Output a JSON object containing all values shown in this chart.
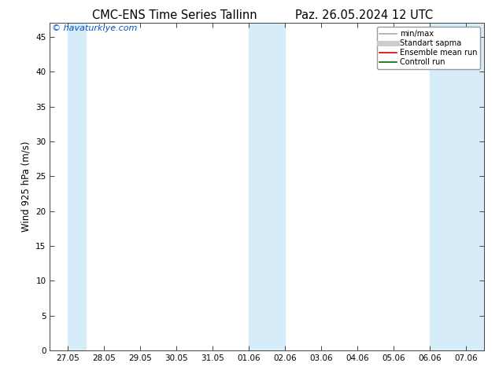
{
  "title_left": "CMC-ENS Time Series Tallinn",
  "title_right": "Paz. 26.05.2024 12 UTC",
  "ylabel": "Wind 925 hPa (m⁄s)",
  "ylabel_text": "Wind 925 hPa (m/s)",
  "watermark": "© havaturkiye.com",
  "watermark_color": "#0055cc",
  "ylim": [
    0,
    47
  ],
  "yticks": [
    0,
    5,
    10,
    15,
    20,
    25,
    30,
    35,
    40,
    45
  ],
  "shaded_bands": [
    {
      "label": "27.05 band",
      "xstart_days": 0.0,
      "xend_days": 0.5
    },
    {
      "label": "01-02.06 band",
      "xstart_days": 5.0,
      "xend_days": 6.0
    },
    {
      "label": "06-07.06 band",
      "xstart_days": 10.0,
      "xend_days": 11.5
    }
  ],
  "shade_color": "#d6ecf8",
  "legend_items": [
    {
      "label": "min/max",
      "color": "#aaaaaa",
      "lw": 1.2
    },
    {
      "label": "Standart sapma",
      "color": "#cccccc",
      "lw": 5
    },
    {
      "label": "Ensemble mean run",
      "color": "#cc0000",
      "lw": 1.2
    },
    {
      "label": "Controll run",
      "color": "#006600",
      "lw": 1.2
    }
  ],
  "background_color": "#ffffff",
  "tick_label_fontsize": 7.5,
  "axis_label_fontsize": 8.5,
  "title_fontsize": 10.5
}
